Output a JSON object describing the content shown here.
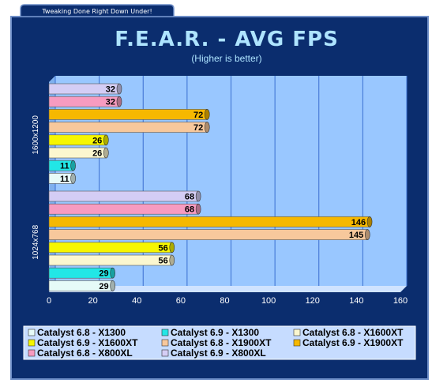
{
  "banner": {
    "text": "Tweaking Done Right Down Under!"
  },
  "colors": {
    "background": "#0b2d6e",
    "plot_bg": "#99c7ff",
    "grid": "#3a6fd0",
    "title": "#aee4ff"
  },
  "chart_data": {
    "type": "bar",
    "orientation": "horizontal",
    "title": "F.E.A.R. - AVG FPS",
    "subtitle": "(Higher is better)",
    "xlim": [
      0,
      160
    ],
    "xticks": [
      0,
      20,
      40,
      60,
      80,
      100,
      120,
      140,
      160
    ],
    "grid": true,
    "legend_position": "bottom",
    "categories": [
      "1600x1200",
      "1024x768"
    ],
    "series": [
      {
        "name": "Catalyst 6.8 - X1300",
        "color": "#e6fbf8",
        "values": [
          11,
          29
        ]
      },
      {
        "name": "Catalyst 6.9 - X1300",
        "color": "#22e6e6",
        "values": [
          11,
          29
        ]
      },
      {
        "name": "Catalyst 6.8 - X1600XT",
        "color": "#fbf7cf",
        "values": [
          26,
          56
        ]
      },
      {
        "name": "Catalyst 6.9 - X1600XT",
        "color": "#f6f600",
        "values": [
          26,
          56
        ]
      },
      {
        "name": "Catalyst 6.8 - X1900XT",
        "color": "#f7c89c",
        "values": [
          72,
          145
        ]
      },
      {
        "name": "Catalyst 6.9 - X1900XT",
        "color": "#f6b800",
        "values": [
          72,
          146
        ]
      },
      {
        "name": "Catalyst 6.8 - X800XL",
        "color": "#f79bc0",
        "values": [
          32,
          68
        ]
      },
      {
        "name": "Catalyst 6.9 - X800XL",
        "color": "#d4cdf5",
        "values": [
          32,
          68
        ]
      }
    ]
  }
}
